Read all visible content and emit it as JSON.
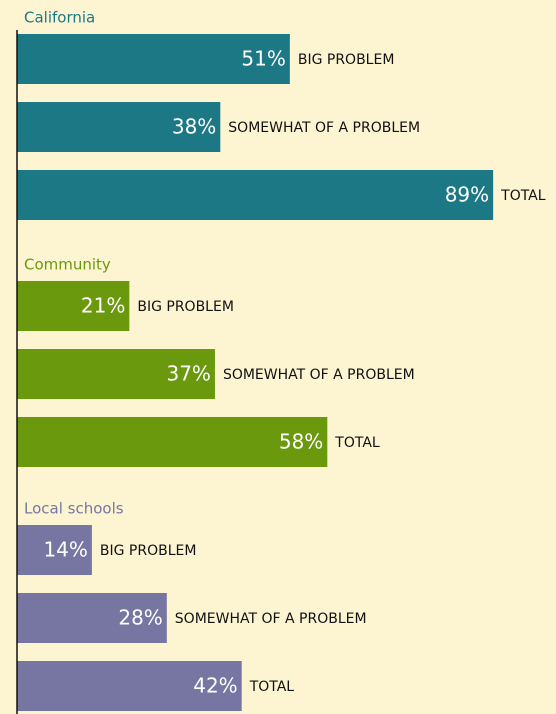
{
  "chart_data": [
    {
      "type": "bar",
      "orientation": "horizontal",
      "title": "California",
      "categories": [
        "BIG PROBLEM",
        "SOMEWHAT OF A PROBLEM",
        "TOTAL"
      ],
      "values": [
        51,
        38,
        89
      ],
      "value_labels": [
        "51%",
        "38%",
        "89%"
      ],
      "color": "#1d7886",
      "xlim": [
        0,
        100
      ]
    },
    {
      "type": "bar",
      "orientation": "horizontal",
      "title": "Community",
      "categories": [
        "BIG PROBLEM",
        "SOMEWHAT OF A PROBLEM",
        "TOTAL"
      ],
      "values": [
        21,
        37,
        58
      ],
      "value_labels": [
        "21%",
        "37%",
        "58%"
      ],
      "color": "#6a990d",
      "xlim": [
        0,
        100
      ]
    },
    {
      "type": "bar",
      "orientation": "horizontal",
      "title": "Local schools",
      "categories": [
        "BIG PROBLEM",
        "SOMEWHAT OF A PROBLEM",
        "TOTAL"
      ],
      "values": [
        14,
        28,
        42
      ],
      "value_labels": [
        "14%",
        "28%",
        "42%"
      ],
      "color": "#7776a3",
      "xlim": [
        0,
        100
      ]
    }
  ]
}
